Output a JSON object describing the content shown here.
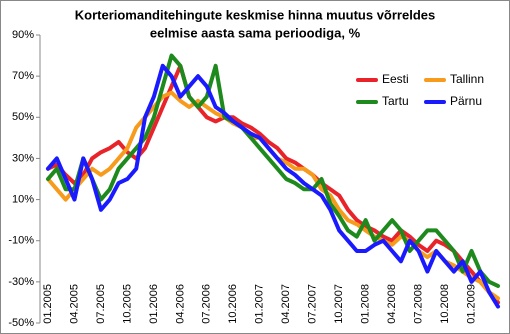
{
  "chart_data": {
    "type": "line",
    "title": "Korteriomanditehingute keskmise hinna muutus võrreldes",
    "subtitle": "eelmise aasta sama perioodiga, %",
    "categories": [
      "01.2005",
      null,
      null,
      "04.2005",
      null,
      null,
      "07.2005",
      null,
      null,
      "10.2005",
      null,
      null,
      "01.2006",
      null,
      null,
      "04.2006",
      null,
      null,
      "07.2006",
      null,
      null,
      "10.2006",
      null,
      null,
      "01.2007",
      null,
      null,
      "04.2007",
      null,
      null,
      "07.2007",
      null,
      null,
      "10.2007",
      null,
      null,
      "01.2008",
      null,
      null,
      "04.2008",
      null,
      null,
      "07.2008",
      null,
      null,
      "10.2008",
      null,
      null,
      "01.2009",
      null,
      null,
      null
    ],
    "series": [
      {
        "name": "Eesti",
        "color": "#e8232a",
        "values": [
          25,
          27,
          22,
          18,
          22,
          30,
          33,
          35,
          38,
          33,
          30,
          35,
          45,
          55,
          65,
          75,
          60,
          55,
          50,
          48,
          50,
          50,
          47,
          45,
          42,
          38,
          35,
          30,
          28,
          25,
          22,
          18,
          15,
          12,
          5,
          0,
          -3,
          -5,
          -8,
          -10,
          -5,
          -8,
          -12,
          -15,
          -10,
          -12,
          -15,
          -20,
          -25,
          -30,
          -35,
          -40
        ]
      },
      {
        "name": "Tallinn",
        "color": "#f79b1d",
        "values": [
          20,
          15,
          10,
          15,
          20,
          25,
          22,
          25,
          30,
          35,
          45,
          50,
          55,
          60,
          62,
          58,
          55,
          58,
          55,
          52,
          50,
          47,
          45,
          40,
          40,
          35,
          30,
          28,
          25,
          25,
          22,
          15,
          12,
          5,
          0,
          -2,
          -5,
          -8,
          -10,
          -12,
          -8,
          -10,
          -15,
          -18,
          -15,
          -20,
          -22,
          -25,
          -28,
          -30,
          -35,
          -38
        ]
      },
      {
        "name": "Tartu",
        "color": "#1e8a1e",
        "values": [
          20,
          25,
          15,
          15,
          30,
          20,
          10,
          15,
          25,
          30,
          35,
          40,
          50,
          65,
          80,
          75,
          60,
          55,
          60,
          75,
          50,
          48,
          45,
          40,
          35,
          30,
          25,
          20,
          18,
          15,
          15,
          20,
          8,
          2,
          -5,
          -8,
          0,
          -10,
          -5,
          0,
          -5,
          -15,
          -10,
          -5,
          -5,
          -10,
          -15,
          -25,
          -15,
          -25,
          -30,
          -32
        ]
      },
      {
        "name": "Pärnu",
        "color": "#1a1aff",
        "values": [
          25,
          30,
          20,
          10,
          30,
          20,
          5,
          10,
          18,
          20,
          25,
          50,
          60,
          75,
          70,
          60,
          65,
          70,
          65,
          55,
          52,
          48,
          45,
          42,
          40,
          35,
          30,
          25,
          22,
          18,
          15,
          12,
          5,
          -5,
          -10,
          -15,
          -15,
          -12,
          -10,
          -15,
          -20,
          -10,
          -15,
          -25,
          -15,
          -20,
          -25,
          -20,
          -30,
          -25,
          -35,
          -42
        ]
      }
    ],
    "ylim": [
      -50,
      90
    ],
    "yticks": [
      {
        "value": -50,
        "label": "-50%"
      },
      {
        "value": -30,
        "label": "-30%"
      },
      {
        "value": -10,
        "label": "-10%"
      },
      {
        "value": 10,
        "label": "10%"
      },
      {
        "value": 30,
        "label": "30%"
      },
      {
        "value": 50,
        "label": "50%"
      },
      {
        "value": 70,
        "label": "70%"
      },
      {
        "value": 90,
        "label": "90%"
      }
    ],
    "grid": false
  }
}
